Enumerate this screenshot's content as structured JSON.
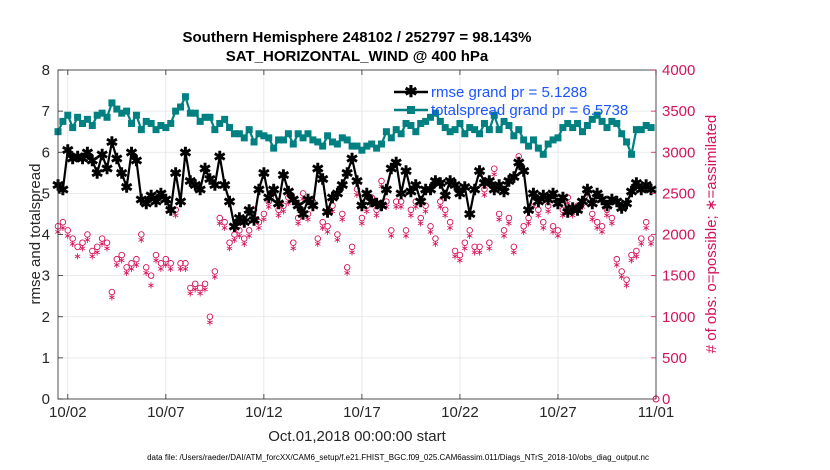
{
  "chart_data": {
    "type": "line",
    "title": "Southern Hemisphere 248102 / 252797 = 98.143%",
    "subtitle": "SAT_HORIZONTAL_WIND @ 400 hPa",
    "xlabel": "Oct.01,2018 00:00:00 start",
    "ylabel_left": "rmse and totalspread",
    "ylabel_right": "# of obs: o=possible; ∗=assimilated",
    "xlim": [
      0.5,
      31.0
    ],
    "ylim_left": [
      0,
      8
    ],
    "ylim_right": [
      0,
      4000
    ],
    "x_ticks": [
      1.0,
      6.0,
      11.0,
      16.0,
      21.0,
      26.0,
      31.0
    ],
    "x_tick_labels": [
      "10/02",
      "10/07",
      "10/12",
      "10/17",
      "10/22",
      "10/27",
      "11/01"
    ],
    "y_ticks_left": [
      0,
      1,
      2,
      3,
      4,
      5,
      6,
      7,
      8
    ],
    "y_tick_labels_left": [
      "0",
      "1",
      "2",
      "3",
      "4",
      "5",
      "6",
      "7",
      "8"
    ],
    "y_ticks_right": [
      0,
      500,
      1000,
      1500,
      2000,
      2500,
      3000,
      3500,
      4000
    ],
    "y_tick_labels_right": [
      "0",
      "500",
      "1000",
      "1500",
      "2000",
      "2500",
      "3000",
      "3500",
      "4000"
    ],
    "grid": true,
    "legend_position": "top-right",
    "colors": {
      "rmse": "#000000",
      "spread": "#008080",
      "obs": "#d4145a",
      "legend_text": "#1a55ff"
    },
    "series": [
      {
        "name": "rmse grand pr = 5.1288",
        "axis": "left",
        "x": [
          0.5,
          0.75,
          1.0,
          1.25,
          1.5,
          1.75,
          2.0,
          2.25,
          2.5,
          2.75,
          3.0,
          3.25,
          3.5,
          3.75,
          4.0,
          4.25,
          4.5,
          4.75,
          5.0,
          5.25,
          5.5,
          5.75,
          6.0,
          6.25,
          6.5,
          6.75,
          7.0,
          7.25,
          7.5,
          7.75,
          8.0,
          8.25,
          8.5,
          8.75,
          9.0,
          9.25,
          9.5,
          9.75,
          10.0,
          10.25,
          10.5,
          10.75,
          11.0,
          11.25,
          11.5,
          11.75,
          12.0,
          12.25,
          12.5,
          12.75,
          13.0,
          13.25,
          13.5,
          13.75,
          14.0,
          14.25,
          14.5,
          14.75,
          15.0,
          15.25,
          15.5,
          15.75,
          16.0,
          16.25,
          16.5,
          16.75,
          17.0,
          17.25,
          17.5,
          17.75,
          18.0,
          18.25,
          18.5,
          18.75,
          19.0,
          19.25,
          19.5,
          19.75,
          20.0,
          20.25,
          20.5,
          20.75,
          21.0,
          21.25,
          21.5,
          21.75,
          22.0,
          22.25,
          22.5,
          22.75,
          23.0,
          23.25,
          23.5,
          23.75,
          24.0,
          24.25,
          24.5,
          24.75,
          25.0,
          25.25,
          25.5,
          25.75,
          26.0,
          26.25,
          26.5,
          26.75,
          27.0,
          27.25,
          27.5,
          27.75,
          28.0,
          28.25,
          28.5,
          28.75,
          29.0,
          29.25,
          29.5,
          29.75,
          30.0,
          30.25,
          30.5,
          30.75
        ],
        "y": [
          5.2,
          5.1,
          6.05,
          5.85,
          5.9,
          5.85,
          6.0,
          5.8,
          5.5,
          5.95,
          5.6,
          6.25,
          5.85,
          5.5,
          5.15,
          6.0,
          5.8,
          4.85,
          4.75,
          4.95,
          4.8,
          5.0,
          4.85,
          4.6,
          5.5,
          4.8,
          6.0,
          5.3,
          5.2,
          5.1,
          5.6,
          5.35,
          5.2,
          5.9,
          5.2,
          4.8,
          4.2,
          4.4,
          4.3,
          4.6,
          4.35,
          5.1,
          5.5,
          4.9,
          5.1,
          4.75,
          5.45,
          5.05,
          4.85,
          4.7,
          4.5,
          4.85,
          4.7,
          5.6,
          5.35,
          4.55,
          4.9,
          5.0,
          5.2,
          5.5,
          5.85,
          5.3,
          4.7,
          5.0,
          4.8,
          4.75,
          4.7,
          5.1,
          5.6,
          5.75,
          5.0,
          5.55,
          5.05,
          5.2,
          4.8,
          5.1,
          5.1,
          5.3,
          5.25,
          4.95,
          5.3,
          5.2,
          5.0,
          5.15,
          4.5,
          5.1,
          5.55,
          5.25,
          5.3,
          5.1,
          5.2,
          5.05,
          5.3,
          5.4,
          5.75,
          5.55,
          4.6,
          5.0,
          4.8,
          4.95,
          4.85,
          5.0,
          4.75,
          4.9,
          4.55,
          4.65,
          4.6,
          4.8,
          5.1,
          4.75,
          5.0,
          4.85,
          4.7,
          4.85,
          4.8,
          4.65,
          4.75,
          5.05,
          5.25,
          5.1,
          5.2,
          5.1
        ]
      },
      {
        "name": "totalspread grand pr = 6.5738",
        "axis": "left",
        "x": [
          0.5,
          0.75,
          1.0,
          1.25,
          1.5,
          1.75,
          2.0,
          2.25,
          2.5,
          2.75,
          3.0,
          3.25,
          3.5,
          3.75,
          4.0,
          4.25,
          4.5,
          4.75,
          5.0,
          5.25,
          5.5,
          5.75,
          6.0,
          6.25,
          6.5,
          6.75,
          7.0,
          7.25,
          7.5,
          7.75,
          8.0,
          8.25,
          8.5,
          8.75,
          9.0,
          9.25,
          9.5,
          9.75,
          10.0,
          10.25,
          10.5,
          10.75,
          11.0,
          11.25,
          11.5,
          11.75,
          12.0,
          12.25,
          12.5,
          12.75,
          13.0,
          13.25,
          13.5,
          13.75,
          14.0,
          14.25,
          14.5,
          14.75,
          15.0,
          15.25,
          15.5,
          15.75,
          16.0,
          16.25,
          16.5,
          16.75,
          17.0,
          17.25,
          17.5,
          17.75,
          18.0,
          18.25,
          18.5,
          18.75,
          19.0,
          19.25,
          19.5,
          19.75,
          20.0,
          20.25,
          20.5,
          20.75,
          21.0,
          21.25,
          21.5,
          21.75,
          22.0,
          22.25,
          22.5,
          22.75,
          23.0,
          23.25,
          23.5,
          23.75,
          24.0,
          24.25,
          24.5,
          24.75,
          25.0,
          25.25,
          25.5,
          25.75,
          26.0,
          26.25,
          26.5,
          26.75,
          27.0,
          27.25,
          27.5,
          27.75,
          28.0,
          28.25,
          28.5,
          28.75,
          29.0,
          29.25,
          29.5,
          29.75,
          30.0,
          30.25,
          30.5,
          30.75
        ],
        "y": [
          6.5,
          6.75,
          6.9,
          6.6,
          6.85,
          6.7,
          6.8,
          6.65,
          6.9,
          6.95,
          6.85,
          7.2,
          7.05,
          6.95,
          7.0,
          6.7,
          6.9,
          6.55,
          6.75,
          6.7,
          6.55,
          6.65,
          6.6,
          6.7,
          7.0,
          7.1,
          7.35,
          6.95,
          6.95,
          6.75,
          6.85,
          6.85,
          6.55,
          6.7,
          6.8,
          6.6,
          6.45,
          6.45,
          6.35,
          6.55,
          6.25,
          6.45,
          6.4,
          6.35,
          6.1,
          6.3,
          6.3,
          6.45,
          6.2,
          6.45,
          6.35,
          6.45,
          6.3,
          6.25,
          6.15,
          6.4,
          6.25,
          6.2,
          6.35,
          6.3,
          6.15,
          6.15,
          6.05,
          6.15,
          6.2,
          6.1,
          6.2,
          6.5,
          6.35,
          6.55,
          6.45,
          6.7,
          6.65,
          6.5,
          6.7,
          6.75,
          6.85,
          6.95,
          6.75,
          6.6,
          6.5,
          6.55,
          6.7,
          6.45,
          6.6,
          6.55,
          6.45,
          6.7,
          6.55,
          6.9,
          6.55,
          6.75,
          6.65,
          6.4,
          6.55,
          6.3,
          6.15,
          6.3,
          6.1,
          5.95,
          6.2,
          6.3,
          6.35,
          6.6,
          6.7,
          6.6,
          6.7,
          6.5,
          6.65,
          6.8,
          6.9,
          6.75,
          6.6,
          6.75,
          6.7,
          6.45,
          6.25,
          5.95,
          6.55,
          6.55,
          6.65,
          6.6
        ]
      }
    ],
    "obs_possible": {
      "axis": "right",
      "marker": "circle",
      "x": [
        0.5,
        0.75,
        1.0,
        1.25,
        1.5,
        1.75,
        2.0,
        2.25,
        2.5,
        2.75,
        3.0,
        3.25,
        3.5,
        3.75,
        4.0,
        4.25,
        4.5,
        4.75,
        5.0,
        5.25,
        5.5,
        5.75,
        6.0,
        6.25,
        6.5,
        6.75,
        7.0,
        7.25,
        7.5,
        7.75,
        8.0,
        8.25,
        8.5,
        8.75,
        9.0,
        9.25,
        9.5,
        9.75,
        10.0,
        10.25,
        10.5,
        10.75,
        11.0,
        11.25,
        11.5,
        11.75,
        12.0,
        12.25,
        12.5,
        12.75,
        13.0,
        13.25,
        13.5,
        13.75,
        14.0,
        14.25,
        14.5,
        14.75,
        15.0,
        15.25,
        15.5,
        15.75,
        16.0,
        16.25,
        16.5,
        16.75,
        17.0,
        17.25,
        17.5,
        17.75,
        18.0,
        18.25,
        18.5,
        18.75,
        19.0,
        19.25,
        19.5,
        19.75,
        20.0,
        20.25,
        20.5,
        20.75,
        21.0,
        21.25,
        21.5,
        21.75,
        22.0,
        22.25,
        22.5,
        22.75,
        23.0,
        23.25,
        23.5,
        23.75,
        24.0,
        24.25,
        24.5,
        24.75,
        25.0,
        25.25,
        25.5,
        25.75,
        26.0,
        26.25,
        26.5,
        26.75,
        27.0,
        27.25,
        27.5,
        27.75,
        28.0,
        28.25,
        28.5,
        28.75,
        29.0,
        29.25,
        29.5,
        29.75,
        30.0,
        30.25,
        30.5,
        30.75
      ],
      "y": [
        2100,
        2150,
        2050,
        1950,
        1850,
        1900,
        2000,
        1800,
        1850,
        1950,
        1900,
        1300,
        1700,
        1750,
        1600,
        1650,
        1700,
        2000,
        1600,
        1500,
        1750,
        1650,
        1700,
        1650,
        2300,
        1650,
        1650,
        1350,
        1400,
        1350,
        1400,
        1000,
        1550,
        2200,
        2150,
        1900,
        2000,
        2050,
        1950,
        2050,
        2300,
        2150,
        2250,
        2400,
        2550,
        2300,
        2350,
        2450,
        1900,
        2200,
        2500,
        2250,
        2400,
        1950,
        2150,
        2100,
        2350,
        2000,
        2250,
        1600,
        1850,
        2550,
        2200,
        2350,
        2450,
        2300,
        2650,
        2400,
        2050,
        2400,
        2400,
        2050,
        2300,
        2400,
        2200,
        2350,
        2100,
        1950,
        2400,
        2300,
        2150,
        1800,
        1750,
        1900,
        2050,
        1850,
        1850,
        2550,
        1900,
        2800,
        2250,
        2050,
        2200,
        1850,
        2950,
        2100,
        2200,
        2400,
        2300,
        2150,
        2350,
        2100,
        2050,
        2300,
        2450,
        2300,
        2350,
        2400,
        2550,
        2250,
        2150,
        2100,
        2300,
        2200,
        1700,
        1550,
        1450,
        1750,
        1800,
        1950,
        2150,
        1950
      ],
      "y_assim": [
        2050,
        2100,
        2000,
        1900,
        1750,
        1850,
        1950,
        1750,
        1800,
        1900,
        1850,
        1250,
        1650,
        1700,
        1550,
        1600,
        1650,
        1950,
        1550,
        1400,
        1700,
        1600,
        1650,
        1600,
        2250,
        1600,
        1600,
        1300,
        1350,
        1300,
        1350,
        950,
        1500,
        2150,
        2100,
        1850,
        1950,
        2000,
        1900,
        2000,
        2250,
        2100,
        2200,
        2350,
        2500,
        2250,
        2300,
        2400,
        1850,
        2150,
        2450,
        2200,
        2350,
        1900,
        2100,
        2050,
        2300,
        1950,
        2200,
        1550,
        1800,
        2500,
        2150,
        2300,
        2400,
        2250,
        2600,
        2350,
        2000,
        2350,
        2350,
        2000,
        2250,
        2350,
        2150,
        2300,
        2050,
        1900,
        2350,
        2250,
        2100,
        1750,
        1700,
        1850,
        2000,
        1800,
        1800,
        2500,
        1850,
        2750,
        2200,
        2000,
        2150,
        1800,
        2900,
        2050,
        2150,
        2350,
        2250,
        2100,
        2300,
        2050,
        2000,
        2250,
        2400,
        2250,
        2300,
        2350,
        2500,
        2200,
        2100,
        2050,
        2250,
        2150,
        1650,
        1500,
        1400,
        1700,
        1750,
        1900,
        2100,
        1900
      ]
    },
    "zero_marker": {
      "x": 31.0,
      "y": 0
    },
    "footer": "data file: /Users/raeder/DAI/ATM_forcXX/CAM6_setup/f.e21.FHIST_BGC.f09_025.CAM6assim.011/Diags_NTrS_2018-10/obs_diag_output.nc"
  }
}
